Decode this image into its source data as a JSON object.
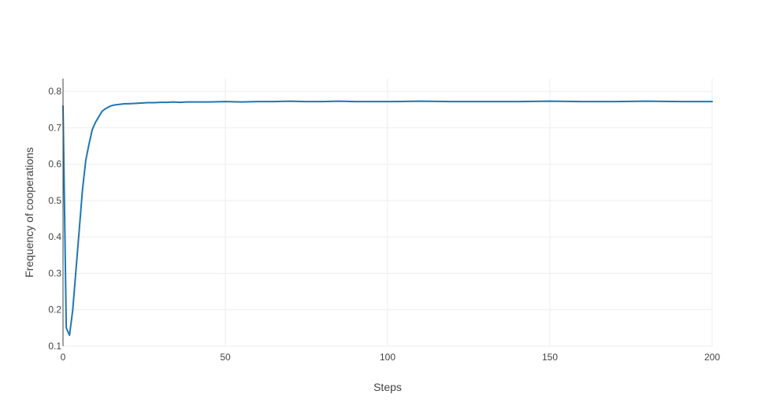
{
  "chart_data": {
    "type": "line",
    "title": "",
    "xlabel": "Steps",
    "ylabel": "Frequency of cooperations",
    "xlim": [
      0,
      200
    ],
    "ylim": [
      0.1,
      0.835
    ],
    "x_ticks": [
      0,
      50,
      100,
      150,
      200
    ],
    "x_tick_labels": [
      "0",
      "50",
      "100",
      "150",
      "200"
    ],
    "y_ticks": [
      0.1,
      0.2,
      0.3,
      0.4,
      0.5,
      0.6,
      0.7,
      0.8
    ],
    "y_tick_labels": [
      "0.1",
      "0.2",
      "0.3",
      "0.4",
      "0.5",
      "0.6",
      "0.7",
      "0.8"
    ],
    "grid": true,
    "legend": "none",
    "colors": {
      "series": "#1f77b4",
      "grid": "#eeeeee",
      "axis": "#444444"
    },
    "series": [
      {
        "x": [
          0,
          1,
          2,
          3,
          4,
          5,
          6,
          7,
          8,
          9,
          10,
          11,
          12,
          13,
          14,
          15,
          16,
          17,
          18,
          19,
          20,
          22,
          24,
          26,
          28,
          30,
          32,
          34,
          36,
          38,
          40,
          45,
          50,
          55,
          60,
          65,
          70,
          75,
          80,
          85,
          90,
          95,
          100,
          110,
          120,
          130,
          140,
          150,
          160,
          170,
          180,
          190,
          200
        ],
        "y": [
          0.76,
          0.15,
          0.13,
          0.2,
          0.31,
          0.42,
          0.53,
          0.61,
          0.655,
          0.695,
          0.715,
          0.73,
          0.745,
          0.752,
          0.757,
          0.761,
          0.763,
          0.764,
          0.765,
          0.766,
          0.766,
          0.767,
          0.768,
          0.769,
          0.769,
          0.77,
          0.77,
          0.771,
          0.77,
          0.771,
          0.771,
          0.771,
          0.772,
          0.771,
          0.772,
          0.772,
          0.773,
          0.772,
          0.772,
          0.773,
          0.772,
          0.772,
          0.772,
          0.773,
          0.772,
          0.772,
          0.772,
          0.773,
          0.772,
          0.772,
          0.773,
          0.772,
          0.772
        ]
      }
    ]
  }
}
